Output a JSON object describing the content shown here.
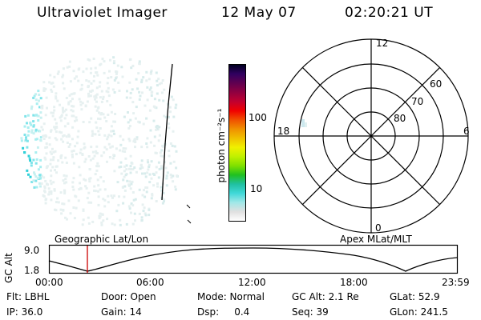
{
  "header": {
    "title": "Ultraviolet Imager",
    "date": "12 May 07",
    "time": "02:20:21 UT"
  },
  "colorbar": {
    "label": "photon cm⁻²s⁻¹",
    "ticks": [
      "100",
      "10"
    ],
    "colors": [
      "#ffffff",
      "#e0e0e0",
      "#a0e8e8",
      "#40d8d8",
      "#20c0a0",
      "#20c020",
      "#80e000",
      "#c0f000",
      "#f0f000",
      "#f0c000",
      "#f09000",
      "#f05000",
      "#f00000",
      "#c00030",
      "#900040",
      "#600050",
      "#300060",
      "#000020"
    ]
  },
  "polar_plot": {
    "mlt_labels": {
      "top": "12",
      "bottom": "0",
      "left": "18",
      "right": "6"
    },
    "lat_labels": [
      "60",
      "70",
      "80"
    ]
  },
  "altitude_panel": {
    "axis_label": "GC Alt",
    "y_ticks": [
      "9.0",
      "1.8"
    ],
    "left_caption": "Geographic Lat/Lon",
    "right_caption": "Apex MLat/MLT",
    "x_ticks": [
      "00:00",
      "06:00",
      "12:00",
      "18:00",
      "23:59"
    ],
    "current_time_color": "#cc0000"
  },
  "info": {
    "row1": [
      "Flt: LBHL",
      "Door: Open",
      "Mode: Normal",
      "GC Alt: 2.1 Re",
      "GLat: 52.9"
    ],
    "row2": [
      "IP: 36.0",
      "Gain: 14",
      "Dsp:     0.4",
      "Seq: 39",
      "GLon: 241.5"
    ]
  }
}
